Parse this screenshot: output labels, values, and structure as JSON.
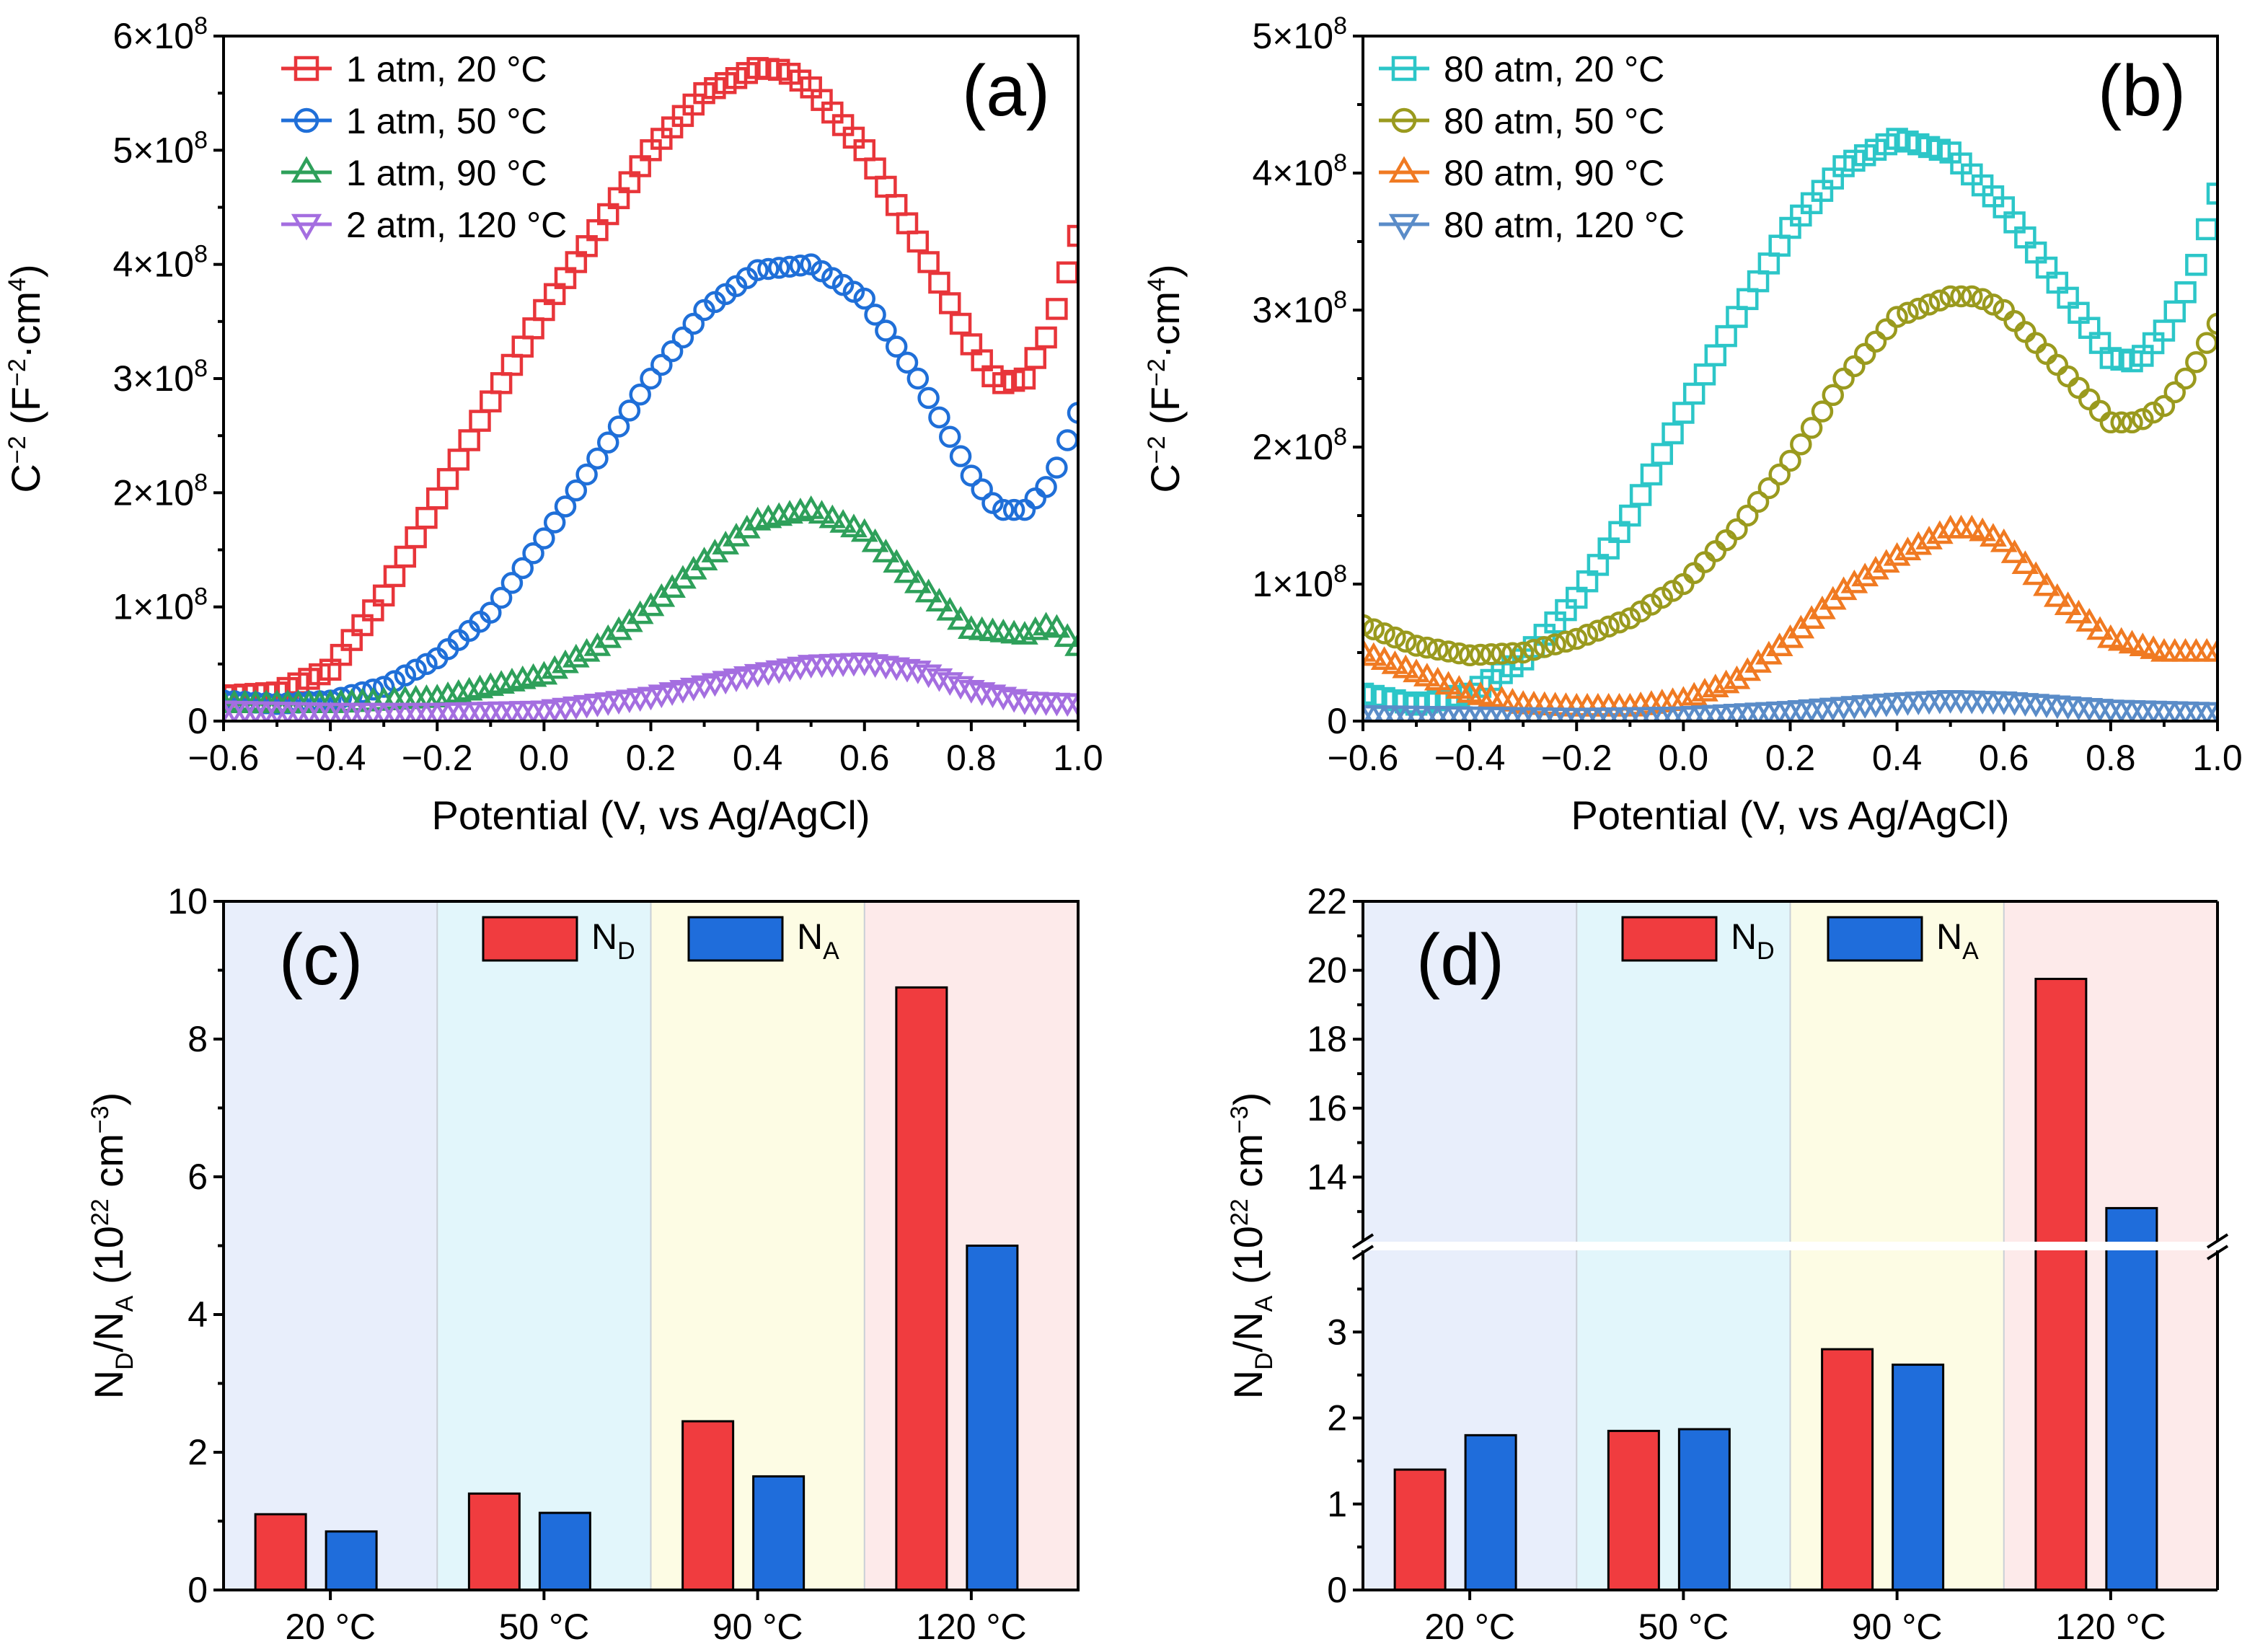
{
  "figure": {
    "type": "multi-panel scientific figure",
    "panels": [
      "(a)",
      "(b)",
      "(c)",
      "(d)"
    ]
  },
  "chart_data": [
    {
      "id": "a",
      "panel_label": "(a)",
      "type": "scatter",
      "xlabel": "Potential (V, vs Ag/AgCl)",
      "ylabel": "C⁻² (F⁻²·cm⁴)",
      "xlim": [
        -0.6,
        1.0
      ],
      "ylim": [
        0,
        600000000
      ],
      "x_ticks": [
        "−0.6",
        "−0.4",
        "−0.2",
        "0.0",
        "0.2",
        "0.4",
        "0.6",
        "0.8",
        "1.0"
      ],
      "y_ticks": [
        "0",
        "1×10⁸",
        "2×10⁸",
        "3×10⁸",
        "4×10⁸",
        "5×10⁸",
        "6×10⁸"
      ],
      "y_tick_values": [
        0,
        100000000,
        200000000,
        300000000,
        400000000,
        500000000,
        600000000
      ],
      "series": [
        {
          "name": "1 atm, 20 °C",
          "marker": "square",
          "color": "#e8353a",
          "x": [
            -0.6,
            -0.5,
            -0.4,
            -0.3,
            -0.2,
            -0.1,
            0.0,
            0.1,
            0.2,
            0.3,
            0.4,
            0.45,
            0.5,
            0.6,
            0.7,
            0.8,
            0.85,
            0.9,
            0.95,
            1.0
          ],
          "y": [
            22000000,
            25000000,
            45000000,
            110000000,
            195000000,
            280000000,
            360000000,
            430000000,
            500000000,
            550000000,
            572000000,
            570000000,
            555000000,
            500000000,
            420000000,
            330000000,
            295000000,
            300000000,
            345000000,
            425000000
          ]
        },
        {
          "name": "1 atm, 50 °C",
          "marker": "circle",
          "color": "#1f6fd8",
          "x": [
            -0.6,
            -0.5,
            -0.4,
            -0.3,
            -0.2,
            -0.1,
            0.0,
            0.1,
            0.2,
            0.3,
            0.4,
            0.5,
            0.6,
            0.7,
            0.8,
            0.85,
            0.9,
            0.95,
            1.0
          ],
          "y": [
            18000000,
            15000000,
            18000000,
            30000000,
            55000000,
            95000000,
            160000000,
            230000000,
            300000000,
            360000000,
            395000000,
            400000000,
            370000000,
            300000000,
            215000000,
            185000000,
            185000000,
            210000000,
            270000000
          ]
        },
        {
          "name": "1 atm, 90 °C",
          "marker": "triangle-up",
          "color": "#2ea05a",
          "x": [
            -0.6,
            -0.4,
            -0.2,
            0.0,
            0.1,
            0.2,
            0.3,
            0.4,
            0.5,
            0.6,
            0.7,
            0.8,
            0.9,
            0.95,
            1.0
          ],
          "y": [
            15000000,
            15000000,
            20000000,
            40000000,
            65000000,
            100000000,
            140000000,
            175000000,
            185000000,
            165000000,
            120000000,
            80000000,
            75000000,
            85000000,
            65000000
          ]
        },
        {
          "name": "2 atm, 120 °C",
          "marker": "triangle-down",
          "color": "#a46ee0",
          "x": [
            -0.6,
            -0.4,
            -0.2,
            0.0,
            0.2,
            0.4,
            0.5,
            0.6,
            0.7,
            0.8,
            0.9,
            1.0
          ],
          "y": [
            10000000,
            8000000,
            8000000,
            10000000,
            22000000,
            42000000,
            50000000,
            52000000,
            45000000,
            28000000,
            18000000,
            16000000
          ]
        }
      ]
    },
    {
      "id": "b",
      "panel_label": "(b)",
      "type": "scatter",
      "xlabel": "Potential (V, vs Ag/AgCl)",
      "ylabel": "C⁻² (F⁻²·cm⁴)",
      "xlim": [
        -0.6,
        1.0
      ],
      "ylim": [
        0,
        500000000
      ],
      "x_ticks": [
        "−0.6",
        "−0.4",
        "−0.2",
        "0.0",
        "0.2",
        "0.4",
        "0.6",
        "0.8",
        "1.0"
      ],
      "y_ticks": [
        "0",
        "1×10⁸",
        "2×10⁸",
        "3×10⁸",
        "4×10⁸",
        "5×10⁸"
      ],
      "y_tick_values": [
        0,
        100000000,
        200000000,
        300000000,
        400000000,
        500000000
      ],
      "series": [
        {
          "name": "80 atm, 20 °C",
          "marker": "square",
          "color": "#2cc6c8",
          "x": [
            -0.6,
            -0.5,
            -0.4,
            -0.3,
            -0.2,
            -0.1,
            0.0,
            0.1,
            0.2,
            0.3,
            0.4,
            0.5,
            0.6,
            0.7,
            0.8,
            0.85,
            0.9,
            0.95,
            1.0
          ],
          "y": [
            20000000,
            12000000,
            20000000,
            45000000,
            90000000,
            150000000,
            225000000,
            295000000,
            360000000,
            405000000,
            425000000,
            415000000,
            375000000,
            320000000,
            265000000,
            262000000,
            285000000,
            320000000,
            385000000
          ]
        },
        {
          "name": "80 atm, 50 °C",
          "marker": "circle",
          "color": "#9a9a1e",
          "x": [
            -0.6,
            -0.5,
            -0.4,
            -0.3,
            -0.2,
            -0.1,
            0.0,
            0.1,
            0.2,
            0.3,
            0.4,
            0.5,
            0.55,
            0.6,
            0.7,
            0.8,
            0.85,
            0.9,
            0.95,
            1.0
          ],
          "y": [
            70000000,
            55000000,
            48000000,
            50000000,
            60000000,
            75000000,
            100000000,
            140000000,
            190000000,
            250000000,
            295000000,
            310000000,
            310000000,
            300000000,
            260000000,
            218000000,
            218000000,
            230000000,
            255000000,
            290000000
          ]
        },
        {
          "name": "80 atm, 90 °C",
          "marker": "triangle-up",
          "color": "#f07a22",
          "x": [
            -0.6,
            -0.5,
            -0.4,
            -0.3,
            -0.2,
            -0.1,
            0.0,
            0.1,
            0.2,
            0.3,
            0.4,
            0.5,
            0.55,
            0.6,
            0.7,
            0.8,
            0.9,
            1.0
          ],
          "y": [
            50000000,
            35000000,
            20000000,
            12000000,
            10000000,
            10000000,
            15000000,
            30000000,
            60000000,
            95000000,
            120000000,
            140000000,
            140000000,
            130000000,
            90000000,
            60000000,
            50000000,
            50000000
          ]
        },
        {
          "name": "80 atm, 120 °C",
          "marker": "triangle-down",
          "color": "#5a8cc8",
          "x": [
            -0.6,
            -0.4,
            -0.2,
            0.0,
            0.2,
            0.4,
            0.5,
            0.6,
            0.7,
            0.8,
            0.9,
            1.0
          ],
          "y": [
            5000000,
            4000000,
            3000000,
            4000000,
            8000000,
            14000000,
            16000000,
            15000000,
            12000000,
            9000000,
            8000000,
            7000000
          ]
        }
      ]
    },
    {
      "id": "c",
      "panel_label": "(c)",
      "type": "bar",
      "ylabel": "N_D/N_A (10²² cm⁻³)",
      "ylim": [
        0,
        10
      ],
      "y_ticks": [
        "0",
        "2",
        "4",
        "6",
        "8",
        "10"
      ],
      "y_tick_values": [
        0,
        2,
        4,
        6,
        8,
        10
      ],
      "categories": [
        "20 °C",
        "50 °C",
        "90 °C",
        "120 °C"
      ],
      "band_colors": [
        "#e8eefb",
        "#e2f6fb",
        "#fdfce4",
        "#fdeaea"
      ],
      "series": [
        {
          "name": "ND",
          "label_main": "N",
          "label_sub": "D",
          "color": "#f03c3f",
          "values": [
            1.1,
            1.4,
            2.45,
            8.75
          ]
        },
        {
          "name": "NA",
          "label_main": "N",
          "label_sub": "A",
          "color": "#1f6ddb",
          "values": [
            0.85,
            1.12,
            1.65,
            5.0
          ]
        }
      ]
    },
    {
      "id": "d",
      "panel_label": "(d)",
      "type": "bar",
      "ylabel": "N_D/N_A (10²² cm⁻³)",
      "broken_axis": true,
      "lower_range": [
        0,
        4
      ],
      "upper_range": [
        12,
        22
      ],
      "y_ticks_lower": [
        "0",
        "1",
        "2",
        "3"
      ],
      "y_ticks_lower_values": [
        0,
        1,
        2,
        3
      ],
      "y_ticks_upper": [
        "14",
        "16",
        "18",
        "20",
        "22"
      ],
      "y_ticks_upper_values": [
        14,
        16,
        18,
        20,
        22
      ],
      "categories": [
        "20 °C",
        "50 °C",
        "90 °C",
        "120 °C"
      ],
      "band_colors": [
        "#e8eefb",
        "#e2f6fb",
        "#fdfce4",
        "#fdeaea"
      ],
      "series": [
        {
          "name": "ND",
          "label_main": "N",
          "label_sub": "D",
          "color": "#f03c3f",
          "values": [
            1.4,
            1.85,
            2.8,
            19.75
          ]
        },
        {
          "name": "NA",
          "label_main": "N",
          "label_sub": "A",
          "color": "#1f6ddb",
          "values": [
            1.8,
            1.87,
            2.62,
            13.1
          ]
        }
      ]
    }
  ]
}
